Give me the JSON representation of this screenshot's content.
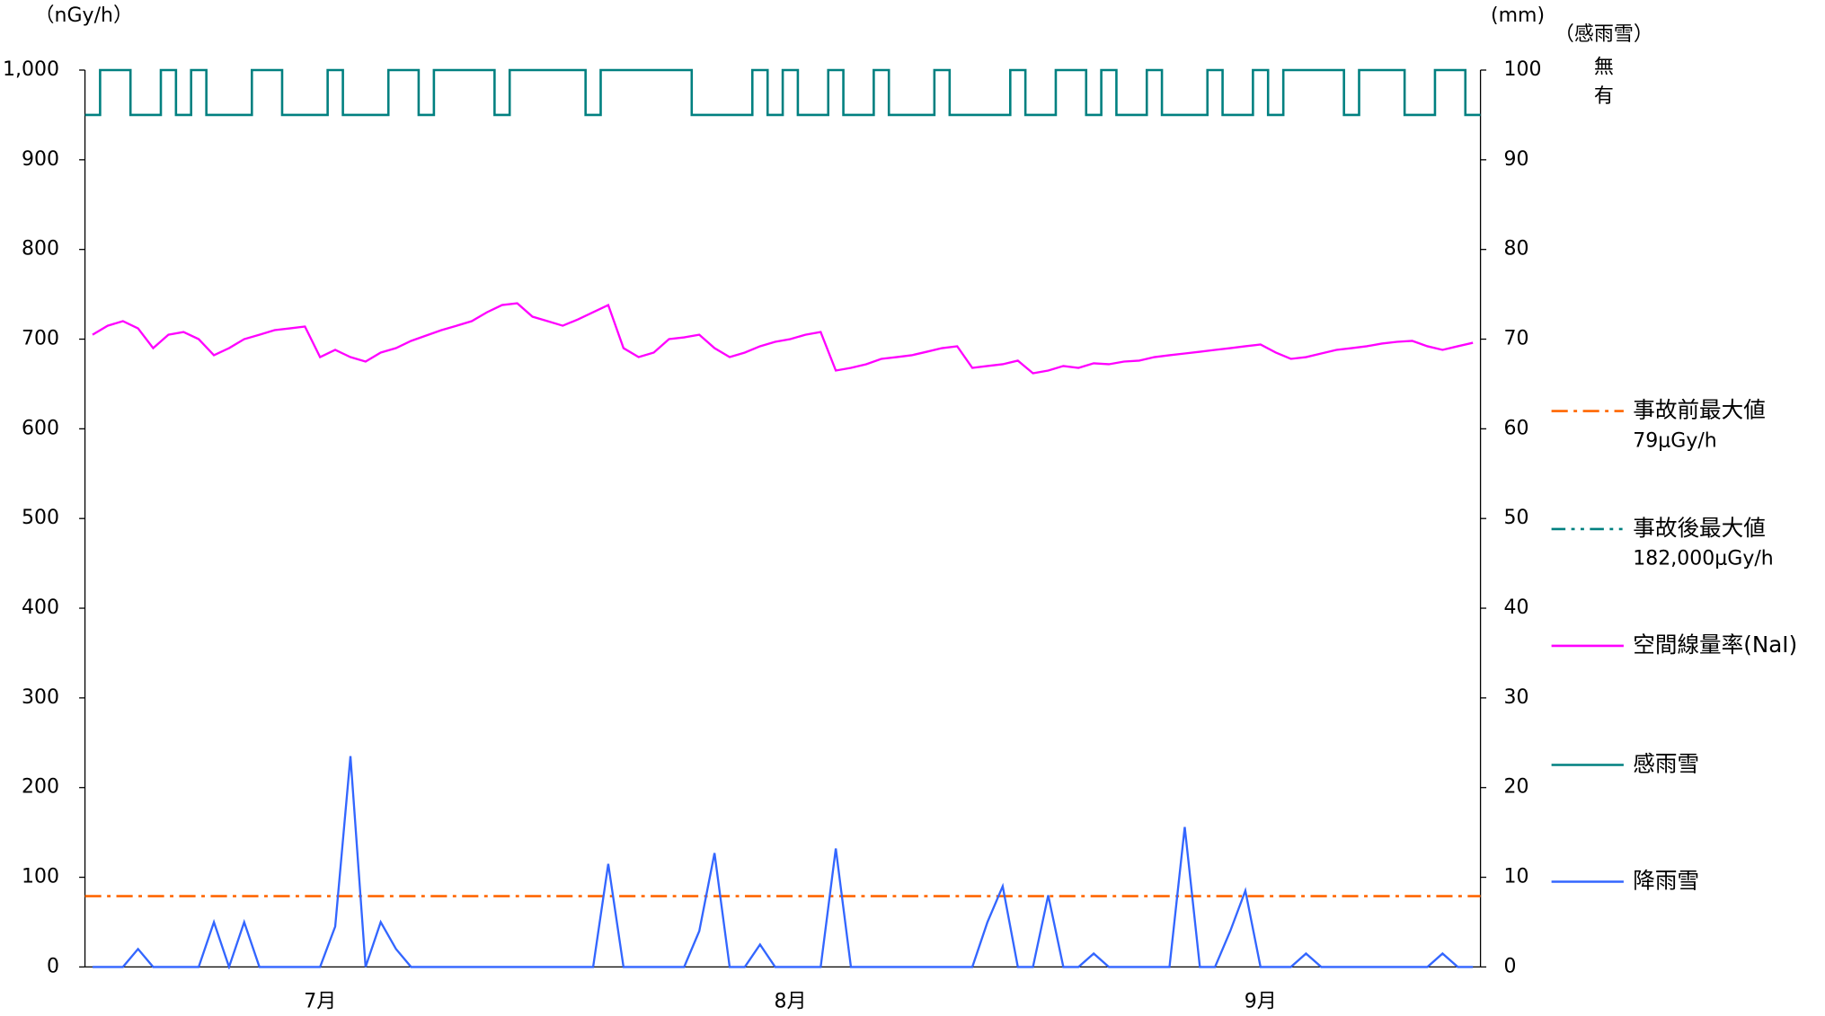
{
  "chart_data": {
    "type": "line",
    "y_label": "（nGy/h）",
    "y2_label": "(mm)",
    "categories": [
      null,
      null,
      null,
      null,
      null,
      null,
      null,
      null,
      null,
      null,
      null,
      null,
      null,
      null,
      null,
      "7月",
      null,
      null,
      null,
      null,
      null,
      null,
      null,
      null,
      null,
      null,
      null,
      null,
      null,
      null,
      null,
      null,
      null,
      null,
      null,
      null,
      null,
      null,
      null,
      null,
      null,
      null,
      null,
      null,
      null,
      null,
      "8月",
      null,
      null,
      null,
      null,
      null,
      null,
      null,
      null,
      null,
      null,
      null,
      null,
      null,
      null,
      null,
      null,
      null,
      null,
      null,
      null,
      null,
      null,
      null,
      null,
      null,
      null,
      null,
      null,
      null,
      null,
      "9月",
      null,
      null,
      null,
      null,
      null,
      null,
      null,
      null,
      null,
      null,
      null,
      null,
      null,
      null
    ],
    "ylim": [
      0,
      1000
    ],
    "yticks": [
      0,
      100,
      200,
      300,
      400,
      500,
      600,
      700,
      800,
      900,
      {
        "value": 1000,
        "label": "1,000"
      }
    ],
    "y2lim": [
      0,
      100
    ],
    "y2ticks": [
      0,
      10,
      20,
      30,
      40,
      50,
      60,
      70,
      80,
      90,
      100
    ],
    "series": [
      {
        "name": "空間線量率(NaI)",
        "color": "#ff00ff",
        "values": [
          705,
          715,
          720,
          712,
          690,
          705,
          708,
          700,
          682,
          690,
          700,
          705,
          710,
          712,
          714,
          680,
          688,
          680,
          675,
          685,
          690,
          698,
          704,
          710,
          715,
          720,
          730,
          738,
          740,
          725,
          720,
          715,
          722,
          730,
          738,
          690,
          680,
          685,
          700,
          702,
          705,
          690,
          680,
          685,
          692,
          697,
          700,
          705,
          708,
          665,
          668,
          672,
          678,
          680,
          682,
          686,
          690,
          692,
          668,
          670,
          672,
          676,
          662,
          665,
          670,
          668,
          673,
          672,
          675,
          676,
          680,
          682,
          684,
          686,
          688,
          690,
          692,
          694,
          685,
          678,
          680,
          684,
          688,
          690,
          692,
          695,
          697,
          698,
          692,
          688,
          692,
          696
        ]
      },
      {
        "name": "感雨雪",
        "color": "#008080",
        "axis_title": "（感雨雪）",
        "levels": [
          "無",
          "有"
        ],
        "values": [
          1,
          0,
          0,
          1,
          1,
          0,
          1,
          0,
          1,
          1,
          1,
          0,
          0,
          1,
          1,
          1,
          0,
          1,
          1,
          1,
          0,
          0,
          1,
          0,
          0,
          0,
          0,
          1,
          0,
          0,
          0,
          0,
          0,
          1,
          0,
          0,
          0,
          0,
          0,
          0,
          1,
          1,
          1,
          1,
          0,
          1,
          0,
          1,
          1,
          0,
          1,
          1,
          0,
          1,
          1,
          1,
          0,
          1,
          1,
          1,
          1,
          0,
          1,
          1,
          0,
          0,
          1,
          0,
          1,
          1,
          0,
          1,
          1,
          1,
          0,
          1,
          1,
          0,
          1,
          0,
          0,
          0,
          0,
          1,
          0,
          0,
          0,
          1,
          1,
          0,
          0,
          1
        ]
      },
      {
        "name": "降雨雪",
        "color": "#3366ff",
        "axis": "y2",
        "values": [
          0,
          0,
          0,
          2,
          0,
          0,
          0,
          0,
          5,
          0,
          5,
          0,
          0,
          0,
          0,
          0,
          4.5,
          23.5,
          0,
          5,
          2,
          0,
          0,
          0,
          0,
          0,
          0,
          0,
          0,
          0,
          0,
          0,
          0,
          0,
          11.5,
          0,
          0,
          0,
          0,
          0,
          4,
          12.7,
          0,
          0,
          2.5,
          0,
          0,
          0,
          0,
          13.2,
          0,
          0,
          0,
          0,
          0,
          0,
          0,
          0,
          0,
          5,
          9,
          0,
          0,
          8,
          0,
          0,
          1.5,
          0,
          0,
          0,
          0,
          0,
          15.6,
          0,
          0,
          4,
          8.5,
          0,
          0,
          0,
          1.5,
          0,
          0,
          0,
          0,
          0,
          0,
          0,
          0,
          1.5,
          0,
          0
        ]
      }
    ],
    "reference_lines": [
      {
        "name": "事故前最大値",
        "value": 79,
        "value_label": "79μGy/h",
        "color": "#ff6600"
      },
      {
        "name": "事故後最大値",
        "value": 182000,
        "value_label": "182,000μGy/h",
        "color": "#008080"
      }
    ]
  }
}
